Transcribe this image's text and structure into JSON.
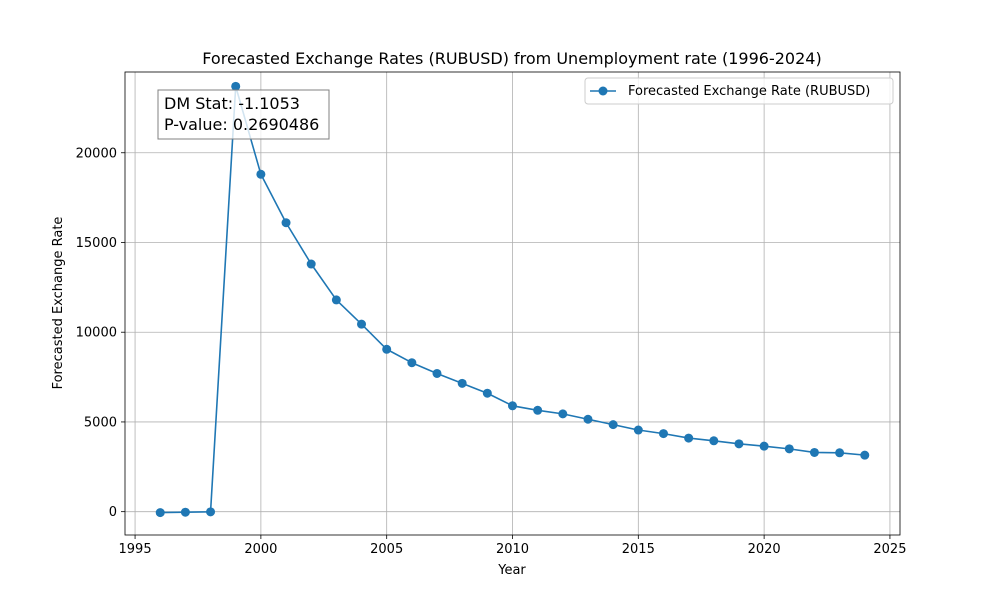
{
  "chart_data": {
    "type": "line",
    "title": "Forecasted Exchange Rates (RUBUSD) from Unemployment rate (1996-2024)",
    "xlabel": "Year",
    "ylabel": "Forecasted Exchange Rate",
    "xlim": [
      1994.6,
      2025.4
    ],
    "ylim": [
      -1300,
      24500
    ],
    "xticks": [
      1995,
      2000,
      2005,
      2010,
      2015,
      2020,
      2025
    ],
    "yticks": [
      0,
      5000,
      10000,
      15000,
      20000
    ],
    "grid": true,
    "legend_position": "upper right",
    "series": [
      {
        "name": "Forecasted Exchange Rate (RUBUSD)",
        "color": "#1f77b4",
        "marker": "circle",
        "x": [
          1996,
          1997,
          1998,
          1999,
          2000,
          2001,
          2002,
          2003,
          2004,
          2005,
          2006,
          2007,
          2008,
          2009,
          2010,
          2011,
          2012,
          2013,
          2014,
          2015,
          2016,
          2017,
          2018,
          2019,
          2020,
          2021,
          2022,
          2023,
          2024
        ],
        "y": [
          -50,
          -30,
          -10,
          23700,
          18800,
          16100,
          13800,
          11800,
          10450,
          9050,
          8300,
          7700,
          7150,
          6600,
          5900,
          5650,
          5450,
          5150,
          4850,
          4550,
          4350,
          4100,
          3950,
          3780,
          3650,
          3500,
          3300,
          3280,
          3150
        ]
      }
    ],
    "annotation": {
      "line1": "DM Stat: -1.1053",
      "line2": "P-value: 0.2690486"
    }
  }
}
